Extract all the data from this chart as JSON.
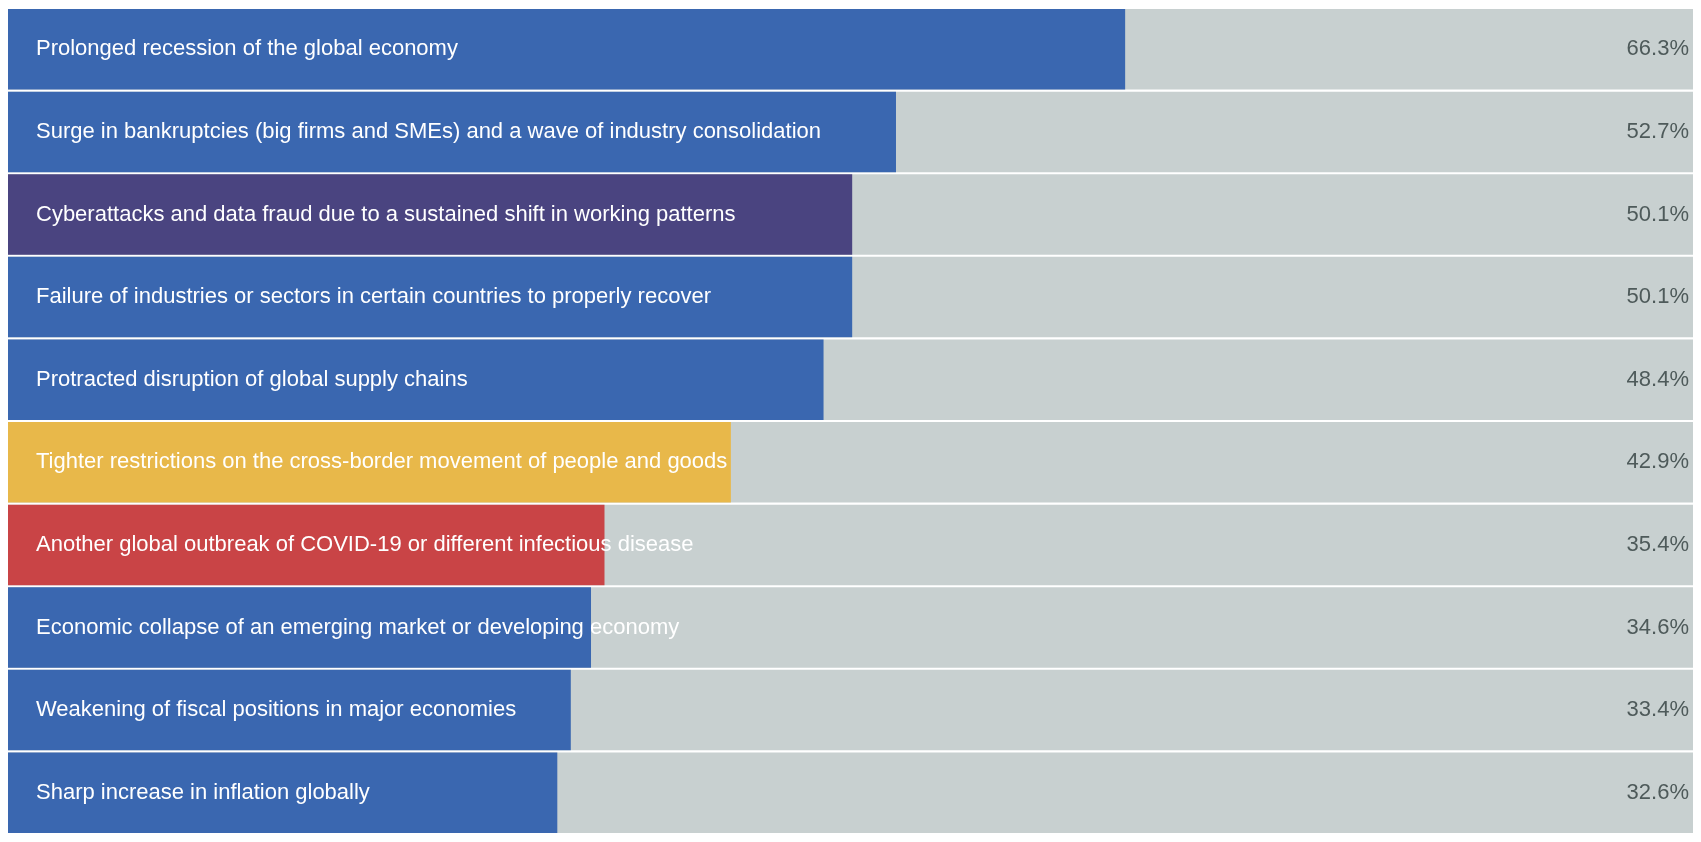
{
  "chart_data": {
    "type": "bar",
    "orientation": "horizontal",
    "categories": [
      "Prolonged recession of the global economy",
      "Surge in bankruptcies (big firms and SMEs) and a wave of industry consolidation",
      "Cyberattacks and data fraud due to a sustained shift in working patterns",
      "Failure of industries or sectors in certain countries to properly recover",
      "Protracted disruption of global supply chains",
      "Tighter restrictions on the cross-border movement of people and goods",
      "Another global outbreak of COVID-19 or different infectious disease",
      "Economic collapse of an emerging market or developing economy",
      "Weakening of fiscal positions in major economies",
      "Sharp increase in inflation globally"
    ],
    "values": [
      66.3,
      52.7,
      50.1,
      50.1,
      48.4,
      42.9,
      35.4,
      34.6,
      33.4,
      32.6
    ],
    "colors": [
      "#3a67b0",
      "#3a67b0",
      "#4a4480",
      "#3a67b0",
      "#3a67b0",
      "#e8b84a",
      "#c94446",
      "#3a67b0",
      "#3a67b0",
      "#3a67b0"
    ],
    "value_labels": [
      "66.3%",
      "52.7%",
      "50.1%",
      "50.1%",
      "48.4%",
      "42.9%",
      "35.4%",
      "34.6%",
      "33.4%",
      "32.6%"
    ],
    "xlim": [
      0,
      100
    ],
    "tick_labels": false,
    "legend": false
  }
}
